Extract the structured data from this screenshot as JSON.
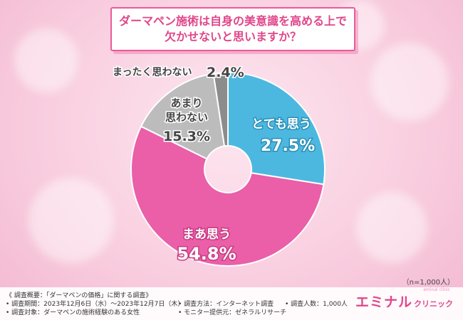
{
  "title": {
    "line1": "ダーマペン施術は自身の美意識を高める上で",
    "line2": "欠かせないと思いますか？"
  },
  "chart_data": {
    "type": "pie",
    "donut": true,
    "slices": [
      {
        "label": "とても思う",
        "value": 27.5,
        "display": "27.5%",
        "color": "#4db8df"
      },
      {
        "label": "まあ思う",
        "value": 54.8,
        "display": "54.8%",
        "color": "#ea5fa8"
      },
      {
        "label": "あまり思わない",
        "value": 15.3,
        "display": "15.3%",
        "color": "#bcbcbc"
      },
      {
        "label": "まったく思わない",
        "value": 2.4,
        "display": "2.4%",
        "color": "#8c8c8c"
      }
    ]
  },
  "note": "（n=1,000人）",
  "footer": {
    "summary": "《 調査概要：「ダーマペンの価格」に関する調査》",
    "period": "• 調査期間：2023年12月6日（水）～2023年12月7日（木）",
    "method": "• 調査方法：インターネット調査",
    "count": "• 調査人数：1,000人",
    "target": "• 調査対象：ダーマペンの施術経験のある女性",
    "provider": "• モニター提供元：ゼネラルリサーチ"
  },
  "logo": {
    "main": "エミナル",
    "sub": "クリニック",
    "tiny": "eminal clinic"
  }
}
